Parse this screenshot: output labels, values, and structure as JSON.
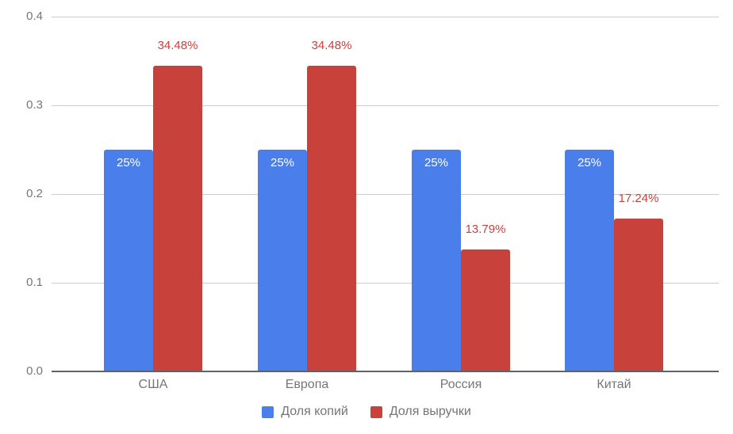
{
  "chart_data": {
    "type": "bar",
    "title": "",
    "xlabel": "",
    "ylabel": "",
    "categories": [
      "США",
      "Европа",
      "Россия",
      "Китай"
    ],
    "series": [
      {
        "name": "Доля копий",
        "color": "#4A7EEA",
        "values": [
          0.25,
          0.25,
          0.25,
          0.25
        ],
        "data_labels": [
          "25%",
          "25%",
          "25%",
          "25%"
        ],
        "data_label_color": "#ffffff",
        "data_label_placement": "inside-top"
      },
      {
        "name": "Доля выручки",
        "color": "#C9413B",
        "values": [
          0.3448,
          0.3448,
          0.1379,
          0.1724
        ],
        "data_labels": [
          "34.48%",
          "34.48%",
          "13.79%",
          "17.24%"
        ],
        "data_label_color": "#C9413B",
        "data_label_placement": "above"
      }
    ],
    "ylim": [
      0,
      0.4
    ],
    "yticks": [
      0.0,
      0.1,
      0.2,
      0.3,
      0.4
    ],
    "ytick_labels": [
      "0.0",
      "0.1",
      "0.2",
      "0.3",
      "0.4"
    ],
    "grid": true,
    "legend_position": "bottom"
  },
  "colors": {
    "background": "#ffffff",
    "gridline": "#cccccc",
    "axis_line": "#5f6368",
    "axis_text": "#757575"
  }
}
